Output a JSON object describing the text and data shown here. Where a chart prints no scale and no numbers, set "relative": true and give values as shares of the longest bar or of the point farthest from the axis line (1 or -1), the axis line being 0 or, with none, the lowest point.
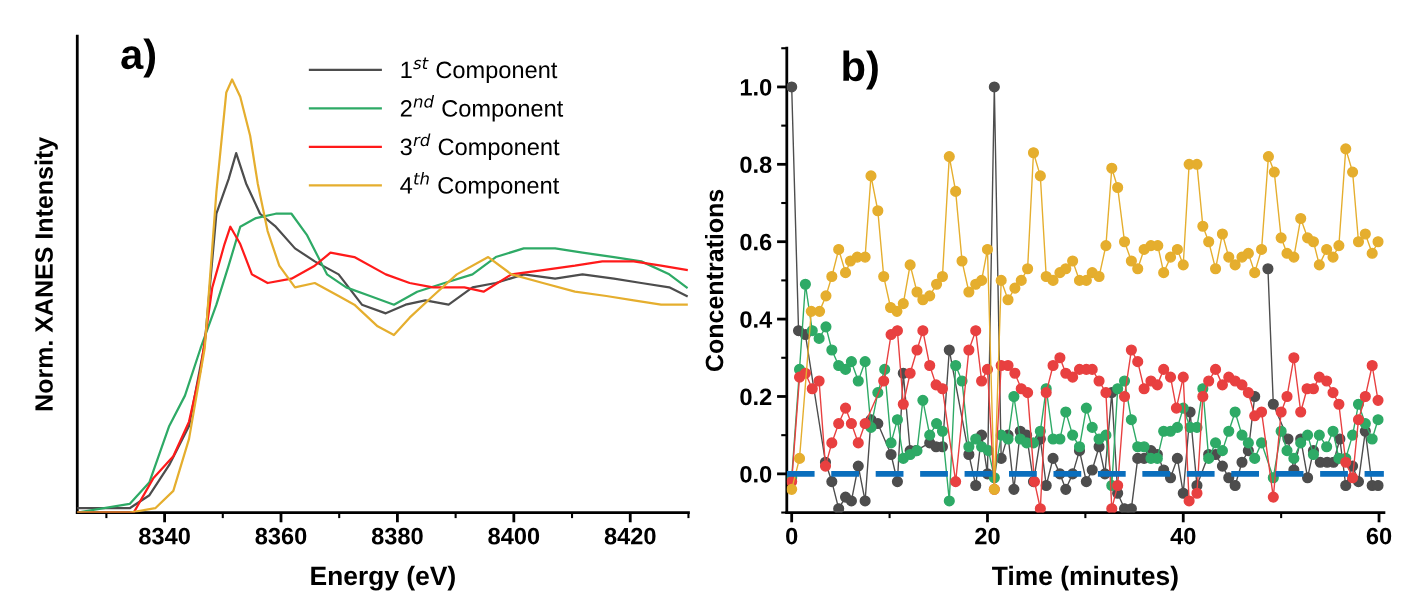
{
  "chart_data": [
    {
      "type": "line",
      "relative": true,
      "xlabel": "Energy (eV)",
      "ylabel": "Norm. XANES Intensity",
      "annotations": [
        "a)"
      ],
      "xlim": [
        8325,
        8430
      ],
      "xticks": [
        8340,
        8360,
        8380,
        8400,
        8420
      ],
      "tick_labels": "x",
      "legend": "top right",
      "grid": false,
      "marker": "none",
      "line_style": "solid",
      "series": [
        {
          "name": "1$^{st}$ Component",
          "color": "#4d4d4d",
          "x": [
            8325,
            8334,
            8337.4,
            8340.8,
            8344.2,
            8346.9,
            8348.9,
            8351,
            8352.3,
            8354,
            8356.4,
            8359.1,
            8362.4,
            8365.8,
            8369.9,
            8373.9,
            8378,
            8381.4,
            8384.8,
            8388.8,
            8392.9,
            8396.9,
            8401.7,
            8407.1,
            8411.8,
            8417.2,
            8421.9,
            8426.7,
            8429.7
          ],
          "values": [
            0.01,
            0.01,
            0.04,
            0.11,
            0.2,
            0.39,
            0.69,
            0.77,
            0.83,
            0.76,
            0.69,
            0.66,
            0.61,
            0.58,
            0.55,
            0.48,
            0.46,
            0.48,
            0.49,
            0.48,
            0.52,
            0.53,
            0.55,
            0.54,
            0.55,
            0.54,
            0.53,
            0.52,
            0.5
          ]
        },
        {
          "name": "2$^{nd}$ Component",
          "color": "#2eaa66",
          "x": [
            8325,
            8334,
            8337.4,
            8340.8,
            8343.5,
            8346.2,
            8348.9,
            8351,
            8353,
            8355.7,
            8359.1,
            8361.8,
            8364.5,
            8367.9,
            8371.2,
            8375.3,
            8379.4,
            8383.4,
            8388.1,
            8392.9,
            8396.9,
            8401.7,
            8407.1,
            8411.8,
            8417.2,
            8421.9,
            8426.7,
            8429.7
          ],
          "values": [
            0.0,
            0.02,
            0.07,
            0.2,
            0.27,
            0.38,
            0.48,
            0.57,
            0.66,
            0.68,
            0.69,
            0.69,
            0.64,
            0.55,
            0.52,
            0.5,
            0.48,
            0.51,
            0.53,
            0.55,
            0.59,
            0.61,
            0.61,
            0.6,
            0.59,
            0.58,
            0.55,
            0.52
          ]
        },
        {
          "name": "3$^{rd}$ Component",
          "color": "#ff1a1a",
          "x": [
            8325,
            8334.7,
            8338.1,
            8341.5,
            8344.2,
            8346.2,
            8348.2,
            8350.3,
            8351.3,
            8353,
            8355,
            8357.7,
            8361.8,
            8365.8,
            8368.5,
            8372.6,
            8378,
            8382.1,
            8386.1,
            8391.5,
            8394.8,
            8399.6,
            8405,
            8410.5,
            8415.2,
            8420.6,
            8425.3,
            8429.7
          ],
          "values": [
            0.0,
            0.0,
            0.08,
            0.13,
            0.21,
            0.33,
            0.52,
            0.62,
            0.66,
            0.62,
            0.55,
            0.53,
            0.54,
            0.57,
            0.6,
            0.59,
            0.55,
            0.53,
            0.52,
            0.52,
            0.51,
            0.55,
            0.56,
            0.57,
            0.58,
            0.58,
            0.57,
            0.56
          ]
        },
        {
          "name": "4$^{th}$ Component",
          "color": "#e5ae2e",
          "x": [
            8325,
            8334,
            8338.4,
            8341.5,
            8344.2,
            8346.9,
            8348.9,
            8350.6,
            8351.6,
            8353,
            8354.7,
            8356,
            8357.7,
            8359.7,
            8362.4,
            8365.8,
            8369.9,
            8372.6,
            8376.6,
            8379.4,
            8382.1,
            8386.1,
            8390.2,
            8395.6,
            8399.6,
            8405,
            8410.5,
            8415.9,
            8420.6,
            8425.3,
            8429.7
          ],
          "values": [
            0.0,
            0.0,
            0.01,
            0.05,
            0.17,
            0.38,
            0.74,
            0.97,
            1.0,
            0.96,
            0.87,
            0.76,
            0.65,
            0.57,
            0.52,
            0.53,
            0.5,
            0.48,
            0.43,
            0.41,
            0.45,
            0.5,
            0.55,
            0.59,
            0.55,
            0.53,
            0.51,
            0.5,
            0.49,
            0.48,
            0.48
          ]
        }
      ]
    },
    {
      "type": "line",
      "xlabel": "Time (minutes)",
      "ylabel": "Concentrations",
      "annotations": [
        "b)"
      ],
      "xlim": [
        -0.5,
        60.5
      ],
      "xticks": [
        0,
        20,
        40,
        60
      ],
      "ylim": [
        -0.1,
        1.1
      ],
      "yticks": [
        {
          "value": 0,
          "label": "0.0"
        },
        0.2,
        0.4,
        0.6,
        0.8,
        {
          "value": 1,
          "label": "1.0"
        }
      ],
      "grid": false,
      "legend": false,
      "marker": "circle",
      "line_style": "solid",
      "ref_lines": [
        {
          "axis": "y",
          "value": 0,
          "label": null,
          "color": "#0a6ebd",
          "line_style": "dashed"
        }
      ],
      "series": [
        {
          "color": "#4d4d4d",
          "x": [
            0,
            0.7,
            1.4,
            3.45,
            4.1,
            4.8,
            5.5,
            6.1,
            6.8,
            7.5,
            8.1,
            8.8,
            10.15,
            10.8,
            11.4,
            12.1,
            12.7,
            14.1,
            14.75,
            15.4,
            16.1,
            18.1,
            18.8,
            19.4,
            20.0,
            20.7,
            21.4,
            22.1,
            22.7,
            23.35,
            24.0,
            24.7,
            25.4,
            26.0,
            26.7,
            27.4,
            28.0,
            28.7,
            29.4,
            30.1,
            30.7,
            31.4,
            32.0,
            32.7,
            33.3,
            34.0,
            34.7,
            35.35,
            36.0,
            36.7,
            37.35,
            38.0,
            38.7,
            39.4,
            40.0,
            40.7,
            41.4,
            42.6,
            43.3,
            44.0,
            44.65,
            45.3,
            46.0,
            46.65,
            47.3,
            48.0,
            48.65,
            49.2,
            50.7,
            51.3,
            52.0,
            52.7,
            53.3,
            54.0,
            54.7,
            55.35,
            56.0,
            56.6,
            57.3,
            57.9,
            58.6,
            59.3,
            59.9
          ],
          "values": [
            1.0,
            0.37,
            0.36,
            0.03,
            -0.02,
            -0.09,
            -0.06,
            -0.07,
            0.02,
            -0.07,
            0.14,
            0.13,
            0.05,
            -0.02,
            0.26,
            0.06,
            0.06,
            0.08,
            0.07,
            0.07,
            0.32,
            0.05,
            -0.03,
            0.1,
            0.0,
            1.0,
            0.04,
            0.1,
            -0.04,
            0.11,
            0.1,
            -0.02,
            0.09,
            -0.03,
            0.04,
            0.0,
            -0.04,
            0.0,
            0.06,
            -0.02,
            0.01,
            0.07,
            0.0,
            0.21,
            -0.05,
            -0.09,
            -0.09,
            0.04,
            0.04,
            0.06,
            0.05,
            0.01,
            -0.01,
            0.04,
            -0.05,
            0.16,
            -0.03,
            0.05,
            0.05,
            0.02,
            -0.01,
            -0.03,
            0.03,
            0.06,
            0.2,
            null,
            0.53,
            0.18,
            0.09,
            0.01,
            0.09,
            -0.01,
            0.06,
            0.03,
            0.03,
            0.03,
            0.09,
            -0.03,
            0.02,
            -0.02,
            0.11,
            -0.03,
            -0.03
          ]
        },
        {
          "color": "#2eaa66",
          "x": [
            0,
            0.8,
            1.4,
            2.1,
            2.8,
            3.5,
            4.1,
            4.8,
            5.5,
            6.1,
            6.8,
            7.5,
            8.1,
            8.8,
            9.5,
            10.15,
            10.8,
            11.4,
            12.1,
            12.8,
            13.4,
            14.1,
            14.8,
            15.4,
            16.1,
            16.75,
            17.4,
            18.1,
            18.8,
            19.4,
            20.1,
            20.7,
            21.4,
            22.1,
            22.7,
            23.35,
            24.0,
            24.7,
            25.4,
            26.0,
            26.7,
            27.4,
            28.0,
            28.7,
            29.4,
            30.1,
            30.7,
            31.4,
            32.1,
            32.7,
            33.3,
            34.0,
            34.7,
            35.35,
            36.0,
            36.7,
            37.35,
            38.0,
            38.7,
            39.4,
            40.0,
            40.7,
            41.4,
            42.0,
            42.6,
            43.3,
            44.0,
            44.65,
            45.3,
            46.0,
            46.65,
            47.3,
            48.0,
            49.2,
            50.0,
            50.6,
            51.3,
            52.0,
            52.7,
            53.3,
            53.9,
            54.65,
            55.3,
            55.9,
            56.6,
            57.3,
            57.9,
            58.6,
            59.3,
            59.9
          ],
          "values": [
            -0.01,
            0.27,
            0.49,
            0.37,
            0.35,
            0.38,
            0.32,
            0.28,
            0.27,
            0.29,
            0.24,
            0.29,
            0.12,
            0.21,
            0.27,
            0.08,
            0.14,
            0.04,
            0.05,
            0.06,
            0.19,
            0.1,
            0.13,
            0.11,
            -0.07,
            0.28,
            0.24,
            0.07,
            0.09,
            0.07,
            0.06,
            -0.01,
            0.1,
            0.09,
            0.2,
            0.09,
            0.08,
            0.08,
            0.11,
            0.22,
            0.09,
            0.09,
            0.16,
            0.1,
            0.07,
            0.17,
            0.12,
            0.09,
            0.1,
            -0.03,
            0.22,
            0.24,
            0.14,
            0.07,
            0.07,
            0.04,
            0.04,
            0.11,
            0.11,
            0.12,
            0.17,
            0.12,
            0.12,
            0.22,
            0.04,
            0.08,
            0.06,
            0.11,
            0.16,
            0.1,
            0.08,
            0.04,
            0.08,
            -0.01,
            0.11,
            0.06,
            0.04,
            0.08,
            0.1,
            0.05,
            0.1,
            0.07,
            0.11,
            0.04,
            0.04,
            0.1,
            0.18,
            0.13,
            0.09,
            0.14
          ]
        },
        {
          "color": "#e84040",
          "x": [
            0,
            0.8,
            1.4,
            2.1,
            2.8,
            3.45,
            4.1,
            4.8,
            5.5,
            6.1,
            6.8,
            7.5,
            9.4,
            10.15,
            10.8,
            11.4,
            12.1,
            12.8,
            13.4,
            14.1,
            14.75,
            15.4,
            16.75,
            18.1,
            18.8,
            19.4,
            20.0,
            20.7,
            21.4,
            22.1,
            22.8,
            23.45,
            24.1,
            24.8,
            25.4,
            26.0,
            26.7,
            27.4,
            28.0,
            28.7,
            29.4,
            30.1,
            30.7,
            31.4,
            32.1,
            32.7,
            33.3,
            34.0,
            34.7,
            35.35,
            36.0,
            36.7,
            37.35,
            38.0,
            38.7,
            39.3,
            40.0,
            40.6,
            41.4,
            42.0,
            42.6,
            43.3,
            44.0,
            44.65,
            45.3,
            46.0,
            46.65,
            47.3,
            48.0,
            49.2,
            50.0,
            50.6,
            51.3,
            52.0,
            52.65,
            53.3,
            53.9,
            54.65,
            55.3,
            55.9,
            56.6,
            57.3,
            57.9,
            58.6,
            59.3,
            59.9
          ],
          "values": [
            -0.02,
            0.25,
            0.26,
            0.22,
            0.24,
            0.02,
            0.08,
            0.13,
            0.17,
            0.13,
            0.08,
            0.13,
            0.24,
            0.36,
            0.37,
            0.18,
            0.26,
            0.32,
            0.37,
            0.28,
            0.23,
            0.22,
            -0.02,
            0.32,
            0.37,
            0.24,
            0.27,
            -0.04,
            0.28,
            0.28,
            0.26,
            0.22,
            0.21,
            -0.02,
            -0.09,
            0.21,
            0.28,
            0.3,
            0.26,
            0.25,
            0.27,
            0.27,
            0.27,
            0.24,
            0.21,
            -0.09,
            -0.03,
            0.2,
            0.32,
            0.29,
            0.22,
            0.24,
            0.23,
            0.27,
            0.25,
            0.17,
            0.25,
            -0.07,
            -0.05,
            0.2,
            0.24,
            0.27,
            0.23,
            0.25,
            0.24,
            0.23,
            0.21,
            0.15,
            0.16,
            -0.06,
            0.16,
            0.2,
            0.3,
            0.16,
            0.22,
            0.22,
            0.25,
            0.24,
            0.21,
            0.18,
            0.03,
            -0.01,
            0.14,
            0.2,
            0.28,
            0.19
          ]
        },
        {
          "color": "#e5ae2e",
          "x": [
            0,
            0.8,
            2.0,
            2.85,
            3.5,
            4.1,
            4.8,
            5.5,
            6.0,
            6.7,
            7.5,
            8.1,
            8.8,
            9.4,
            10.1,
            10.75,
            11.4,
            12.1,
            12.8,
            13.4,
            14.1,
            14.8,
            15.4,
            16.1,
            16.75,
            17.4,
            18.1,
            18.8,
            19.4,
            20.0,
            20.7,
            21.4,
            22.1,
            22.8,
            23.45,
            24.1,
            24.7,
            25.4,
            26.0,
            26.7,
            27.4,
            28.0,
            28.7,
            29.4,
            30.1,
            30.7,
            31.4,
            32.1,
            32.7,
            33.3,
            34.0,
            34.7,
            35.35,
            36.0,
            36.7,
            37.4,
            38.0,
            38.7,
            39.4,
            40.0,
            40.6,
            41.4,
            42.0,
            42.6,
            43.3,
            44.0,
            44.65,
            45.3,
            46.0,
            46.65,
            47.3,
            48.0,
            48.7,
            49.3,
            50.0,
            50.6,
            51.3,
            52.0,
            52.7,
            53.3,
            53.9,
            54.65,
            55.3,
            55.9,
            56.6,
            57.3,
            57.9,
            58.6,
            59.3,
            59.9
          ],
          "values": [
            -0.04,
            0.04,
            0.42,
            0.42,
            0.46,
            0.51,
            0.58,
            0.52,
            0.55,
            0.56,
            0.56,
            0.77,
            0.68,
            0.51,
            0.43,
            0.42,
            0.44,
            0.54,
            0.47,
            0.45,
            0.46,
            0.49,
            0.51,
            0.82,
            0.73,
            0.55,
            0.47,
            0.49,
            0.5,
            0.58,
            -0.04,
            0.5,
            0.45,
            0.48,
            0.5,
            0.53,
            0.83,
            0.77,
            0.51,
            0.5,
            0.52,
            0.53,
            0.55,
            0.5,
            0.5,
            0.52,
            0.51,
            0.59,
            0.79,
            0.74,
            0.6,
            0.55,
            0.53,
            0.58,
            0.59,
            0.59,
            0.52,
            0.56,
            0.58,
            0.54,
            0.8,
            0.8,
            0.64,
            0.6,
            0.53,
            0.62,
            0.56,
            0.54,
            0.56,
            0.57,
            0.52,
            0.58,
            0.82,
            0.78,
            0.61,
            0.57,
            0.56,
            0.66,
            0.61,
            0.6,
            0.54,
            0.58,
            0.56,
            0.59,
            0.84,
            0.78,
            0.6,
            0.62,
            0.57,
            0.6
          ]
        }
      ]
    }
  ]
}
